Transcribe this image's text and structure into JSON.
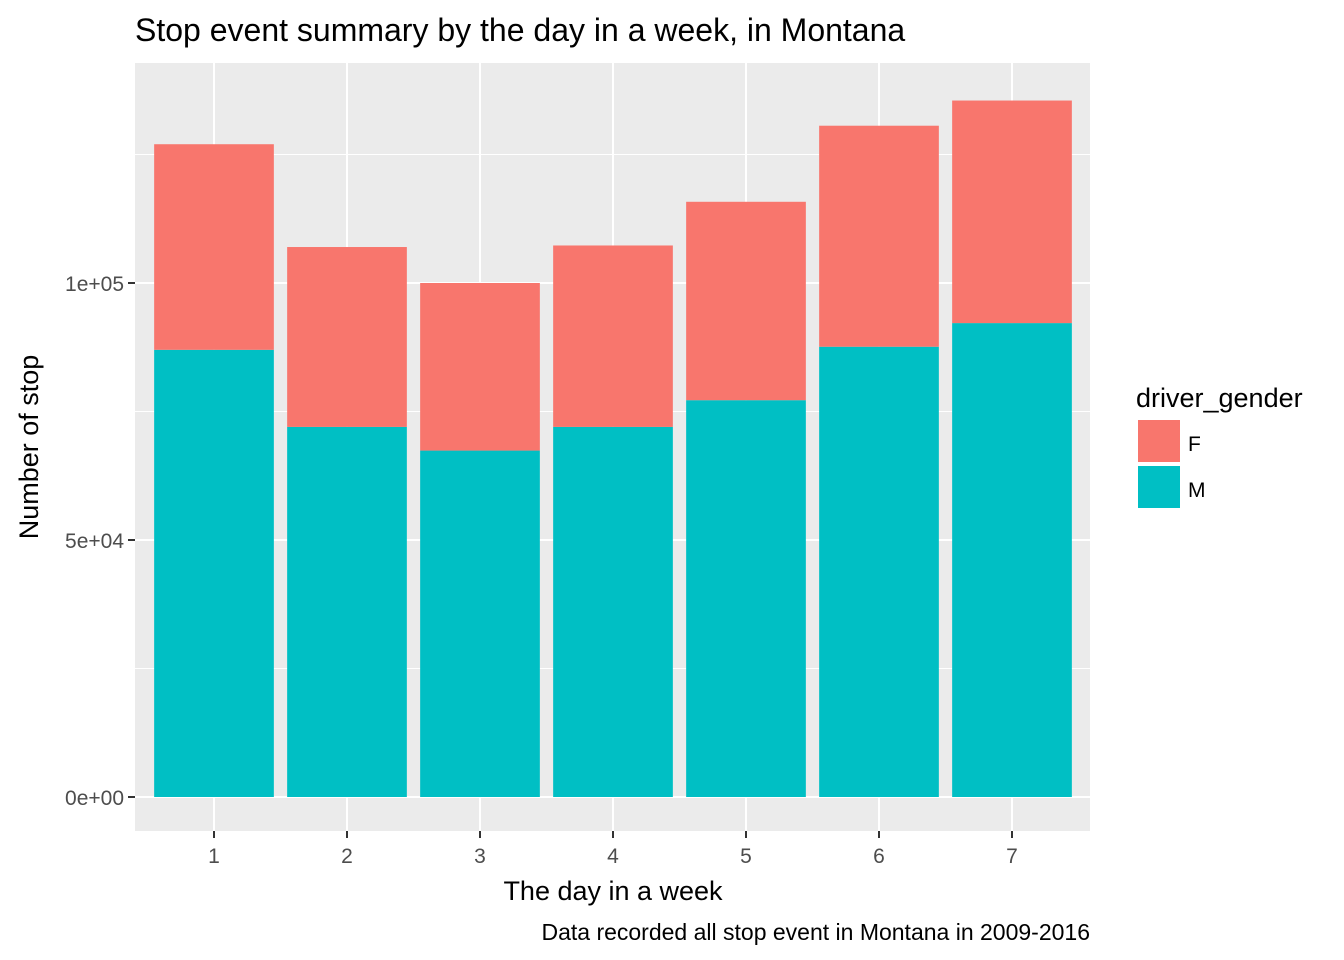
{
  "chart_data": {
    "type": "bar",
    "stacked": true,
    "title": "Stop event summary by the day in a week, in Montana",
    "xlabel": "The day in a week",
    "ylabel": "Number of stop",
    "caption": "Data recorded all stop event in Montana in 2009-2016",
    "categories": [
      "1",
      "2",
      "3",
      "4",
      "5",
      "6",
      "7"
    ],
    "series": [
      {
        "name": "M",
        "color": "#00BFC4",
        "values": [
          87000,
          72000,
          67400,
          72000,
          77200,
          87600,
          92200
        ]
      },
      {
        "name": "F",
        "color": "#F8766D",
        "values": [
          40000,
          35000,
          32600,
          35300,
          38600,
          43000,
          43300
        ]
      }
    ],
    "ylim": [
      0,
      142000
    ],
    "y_ticks": [
      {
        "value": 0,
        "label": "0e+00"
      },
      {
        "value": 50000,
        "label": "5e+04"
      },
      {
        "value": 100000,
        "label": "1e+05"
      }
    ],
    "grid": true,
    "legend": {
      "title": "driver_gender",
      "position": "right",
      "entries": [
        {
          "name": "F",
          "color": "#F8766D"
        },
        {
          "name": "M",
          "color": "#00BFC4"
        }
      ]
    }
  }
}
